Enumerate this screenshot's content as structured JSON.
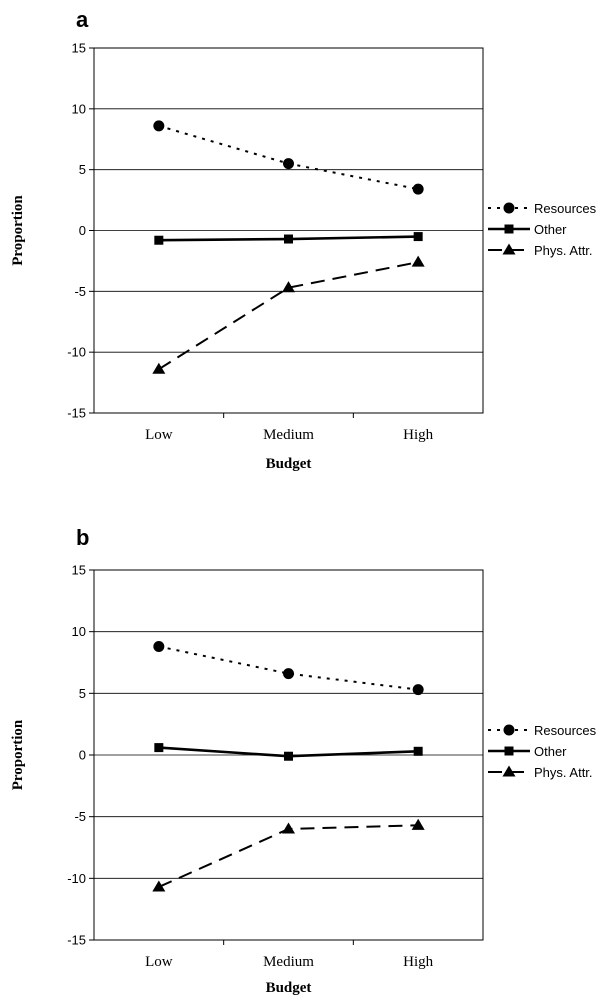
{
  "chart_data": [
    {
      "type": "line",
      "panel_label": "a",
      "xlabel": "Budget",
      "ylabel": "Proportion",
      "categories": [
        "Low",
        "Medium",
        "High"
      ],
      "ylim": [
        -15,
        15
      ],
      "yticks": [
        15,
        10,
        5,
        0,
        -5,
        -10,
        -15
      ],
      "grid": true,
      "legend_position": "right",
      "series": [
        {
          "name": "Resources",
          "values": [
            8.6,
            5.5,
            3.4
          ],
          "marker": "circle",
          "line_style": "dotted"
        },
        {
          "name": "Other",
          "values": [
            -0.8,
            -0.7,
            -0.5
          ],
          "marker": "square",
          "line_style": "solid"
        },
        {
          "name": "Phys. Attr.",
          "values": [
            -11.4,
            -4.7,
            -2.6
          ],
          "marker": "triangle",
          "line_style": "dashed"
        }
      ]
    },
    {
      "type": "line",
      "panel_label": "b",
      "xlabel": "Budget",
      "ylabel": "Proportion",
      "categories": [
        "Low",
        "Medium",
        "High"
      ],
      "ylim": [
        -15,
        15
      ],
      "yticks": [
        15,
        10,
        5,
        0,
        -5,
        -10,
        -15
      ],
      "grid": true,
      "legend_position": "right",
      "series": [
        {
          "name": "Resources",
          "values": [
            8.8,
            6.6,
            5.3
          ],
          "marker": "circle",
          "line_style": "dotted"
        },
        {
          "name": "Other",
          "values": [
            0.6,
            -0.1,
            0.3
          ],
          "marker": "square",
          "line_style": "solid"
        },
        {
          "name": "Phys. Attr.",
          "values": [
            -10.7,
            -6.0,
            -5.7
          ],
          "marker": "triangle",
          "line_style": "dashed"
        }
      ]
    }
  ]
}
